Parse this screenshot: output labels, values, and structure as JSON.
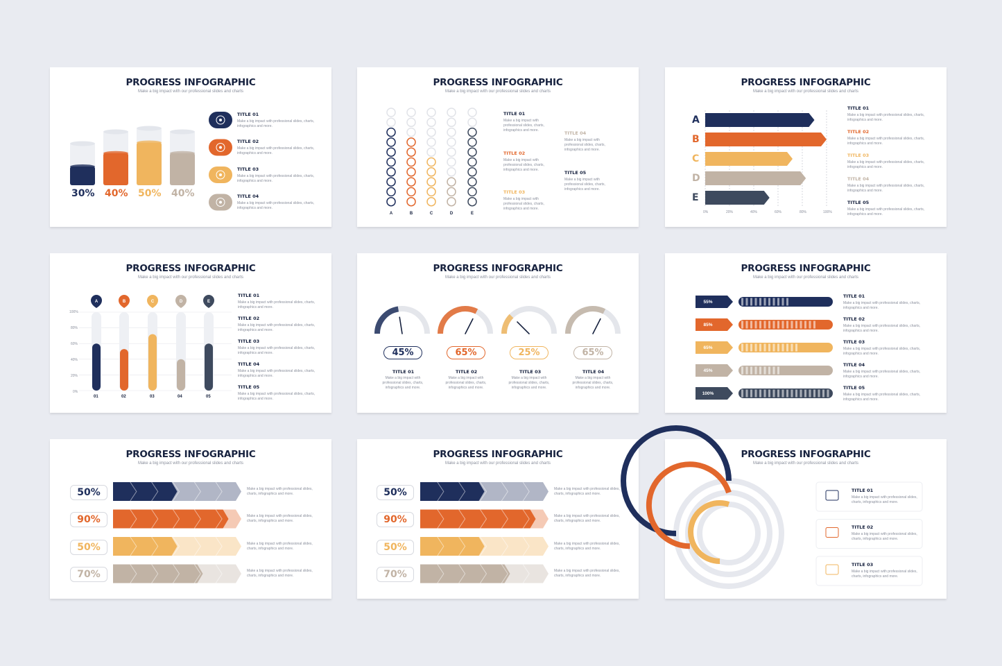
{
  "title": "PROGRESS INFOGRAPHIC",
  "subtitle": "Make a big impact with our professional slides and charts",
  "desc_long": "Make a big impact with professional slides, charts, infographics and more.",
  "desc_short": "Make a big impact with professional slides, charts, infographics and more.",
  "colors": {
    "navy": "#1f2f5c",
    "orange": "#e2672c",
    "yellow": "#f0b55e",
    "beige": "#c1b3a5",
    "slate": "#3e4a5e"
  },
  "s1": {
    "cups": [
      {
        "value": "30%",
        "level": 0.3
      },
      {
        "value": "40%",
        "level": 0.4
      },
      {
        "value": "50%",
        "level": 0.5
      },
      {
        "value": "40%",
        "level": 0.4
      }
    ],
    "items": [
      {
        "title": "TITLE 01",
        "icon": "target-icon"
      },
      {
        "title": "TITLE 02",
        "icon": "network-icon"
      },
      {
        "title": "TITLE 03",
        "icon": "chart-icon"
      },
      {
        "title": "TITLE 04",
        "icon": "money-icon"
      }
    ]
  },
  "s2": {
    "columns": [
      "A",
      "B",
      "C",
      "D",
      "E"
    ],
    "filled": [
      8,
      7,
      5,
      3,
      8
    ],
    "total": 10,
    "items": [
      "TITLE 01",
      "TITLE 02",
      "TITLE 03",
      "TITLE 04",
      "TITLE 05"
    ]
  },
  "s3": {
    "letters": [
      "A",
      "B",
      "C",
      "D",
      "E"
    ],
    "values": [
      90,
      100,
      72,
      83,
      53
    ],
    "ticks": [
      "0%",
      "20%",
      "40%",
      "60%",
      "80%",
      "100%"
    ],
    "items": [
      "TITLE 01",
      "TITLE 02",
      "TITLE 03",
      "TITLE 04",
      "TITLE 05"
    ]
  },
  "s4": {
    "markers": [
      "A",
      "B",
      "C",
      "D",
      "E"
    ],
    "xlabels": [
      "01",
      "02",
      "03",
      "04",
      "05"
    ],
    "values": [
      60,
      53,
      72,
      40,
      60
    ],
    "yticks": [
      "100%",
      "80%",
      "60%",
      "40%",
      "20%",
      "0%"
    ],
    "items": [
      "TITLE 01",
      "TITLE 02",
      "TITLE 03",
      "TITLE 04",
      "TITLE 05"
    ]
  },
  "s5": {
    "gauges": [
      {
        "value": "45%",
        "level": 0.45,
        "title": "TITLE 01"
      },
      {
        "value": "65%",
        "level": 0.65,
        "title": "TITLE 02"
      },
      {
        "value": "25%",
        "level": 0.25,
        "title": "TITLE 03"
      },
      {
        "value": "65%",
        "level": 0.65,
        "title": "TITLE 04"
      }
    ]
  },
  "s6": {
    "rows": [
      {
        "value": "55%",
        "level": 0.55
      },
      {
        "value": "85%",
        "level": 0.85
      },
      {
        "value": "65%",
        "level": 0.65
      },
      {
        "value": "45%",
        "level": 0.45
      },
      {
        "value": "100%",
        "level": 1.0
      }
    ],
    "items": [
      "TITLE 01",
      "TITLE 02",
      "TITLE 03",
      "TITLE 04",
      "TITLE 05"
    ]
  },
  "s7": {
    "rows": [
      {
        "value": "50%",
        "level": 0.5
      },
      {
        "value": "90%",
        "level": 0.9
      },
      {
        "value": "50%",
        "level": 0.5
      },
      {
        "value": "70%",
        "level": 0.7
      }
    ],
    "desc": "Make a big impact with professional slides, charts, infographics and more."
  },
  "s8": {
    "rows": [
      {
        "value": "50%",
        "level": 0.5
      },
      {
        "value": "90%",
        "level": 0.9
      },
      {
        "value": "50%",
        "level": 0.5
      },
      {
        "value": "70%",
        "level": 0.7
      }
    ],
    "desc": "Make a big impact with professional slides, charts, infographics and more."
  },
  "s9": {
    "rings": [
      {
        "level": 0.75
      },
      {
        "level": 0.7
      },
      {
        "level": 0.55
      }
    ],
    "items": [
      {
        "title": "TITLE 01",
        "icon": "coffee-cup-icon"
      },
      {
        "title": "TITLE 02",
        "icon": "handshake-icon"
      },
      {
        "title": "TITLE 03",
        "icon": "briefcase-icon"
      }
    ]
  }
}
